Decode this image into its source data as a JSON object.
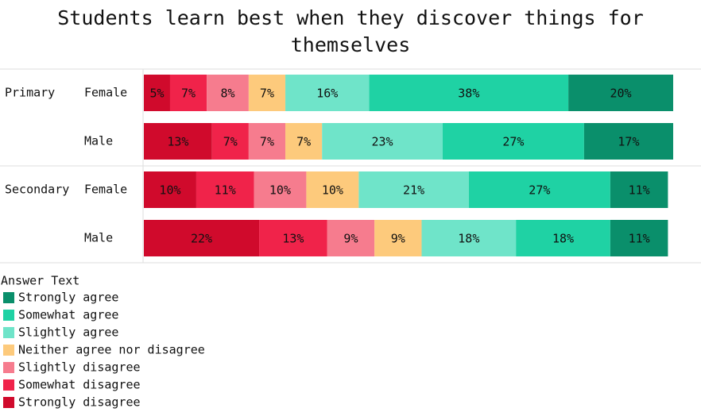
{
  "chart_data": {
    "type": "stacked_bar_horizontal",
    "title": "Students learn best when they discover things for themselves",
    "group_labels": [
      "Primary",
      null,
      "Secondary",
      null
    ],
    "categories": [
      "Female",
      "Male",
      "Female",
      "Male"
    ],
    "xlim": [
      0,
      101
    ],
    "legend_title": "Answer Text",
    "legend_position": "bottom-left",
    "series": [
      {
        "name": "Strongly disagree",
        "color": "#d00a2c",
        "values": [
          5,
          13,
          10,
          22
        ],
        "value_labels": [
          "5%",
          "13%",
          "10%",
          "22%"
        ]
      },
      {
        "name": "Somewhat disagree",
        "color": "#f0234a",
        "values": [
          7,
          7,
          11,
          13
        ],
        "value_labels": [
          "7%",
          "7%",
          "11%",
          "13%"
        ]
      },
      {
        "name": "Slightly disagree",
        "color": "#f67c8e",
        "values": [
          8,
          7,
          10,
          9
        ],
        "value_labels": [
          "8%",
          "7%",
          "10%",
          "9%"
        ]
      },
      {
        "name": "Neither agree nor disagree",
        "color": "#fdca7c",
        "values": [
          7,
          7,
          10,
          9
        ],
        "value_labels": [
          "7%",
          "7%",
          "10%",
          "9%"
        ]
      },
      {
        "name": "Slightly agree",
        "color": "#6fe4c9",
        "values": [
          16,
          23,
          21,
          18
        ],
        "value_labels": [
          "16%",
          "23%",
          "21%",
          "18%"
        ]
      },
      {
        "name": "Somewhat agree",
        "color": "#1fd2a4",
        "values": [
          38,
          27,
          27,
          18
        ],
        "value_labels": [
          "38%",
          "27%",
          "27%",
          "18%"
        ]
      },
      {
        "name": "Strongly agree",
        "color": "#0a8f6b",
        "values": [
          20,
          17,
          11,
          11
        ],
        "value_labels": [
          "20%",
          "17%",
          "11%",
          "11%"
        ]
      }
    ]
  }
}
